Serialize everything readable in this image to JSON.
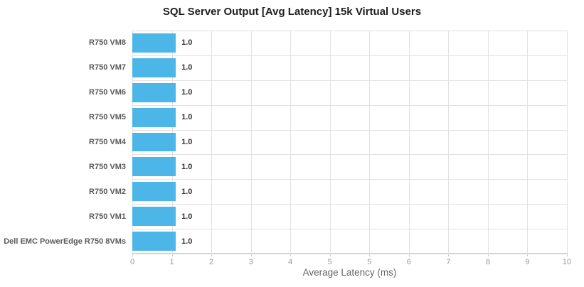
{
  "chart_data": {
    "type": "bar",
    "orientation": "horizontal",
    "title": "SQL Server Output [Avg Latency] 15k Virtual Users",
    "categories": [
      "R750 VM8",
      "R750 VM7",
      "R750 VM6",
      "R750 VM5",
      "R750 VM4",
      "R750 VM3",
      "R750 VM2",
      "R750 VM1",
      "Dell EMC PowerEdge R750 8VMs"
    ],
    "values": [
      1.0,
      1.0,
      1.0,
      1.0,
      1.0,
      1.0,
      1.0,
      1.0,
      1.0
    ],
    "value_labels": [
      "1.0",
      "1.0",
      "1.0",
      "1.0",
      "1.0",
      "1.0",
      "1.0",
      "1.0",
      "1.0"
    ],
    "xlabel": "Average Latency (ms)",
    "ylabel": "",
    "xlim": [
      0,
      10
    ],
    "x_tick_labels": [
      "0",
      "1",
      "2",
      "3",
      "4",
      "5",
      "5",
      "6",
      "7",
      "8",
      "9",
      "10"
    ],
    "grid": true,
    "legend": "none",
    "bar_color": "#4DB6E9",
    "grid_color": "#e2e2e2",
    "axis_color": "#c9c9c9",
    "tick_label_color": "#999999",
    "category_label_color": "#595959",
    "value_label_color": "#333333",
    "title_color": "#1e1e1e",
    "axis_title_color": "#666666"
  }
}
